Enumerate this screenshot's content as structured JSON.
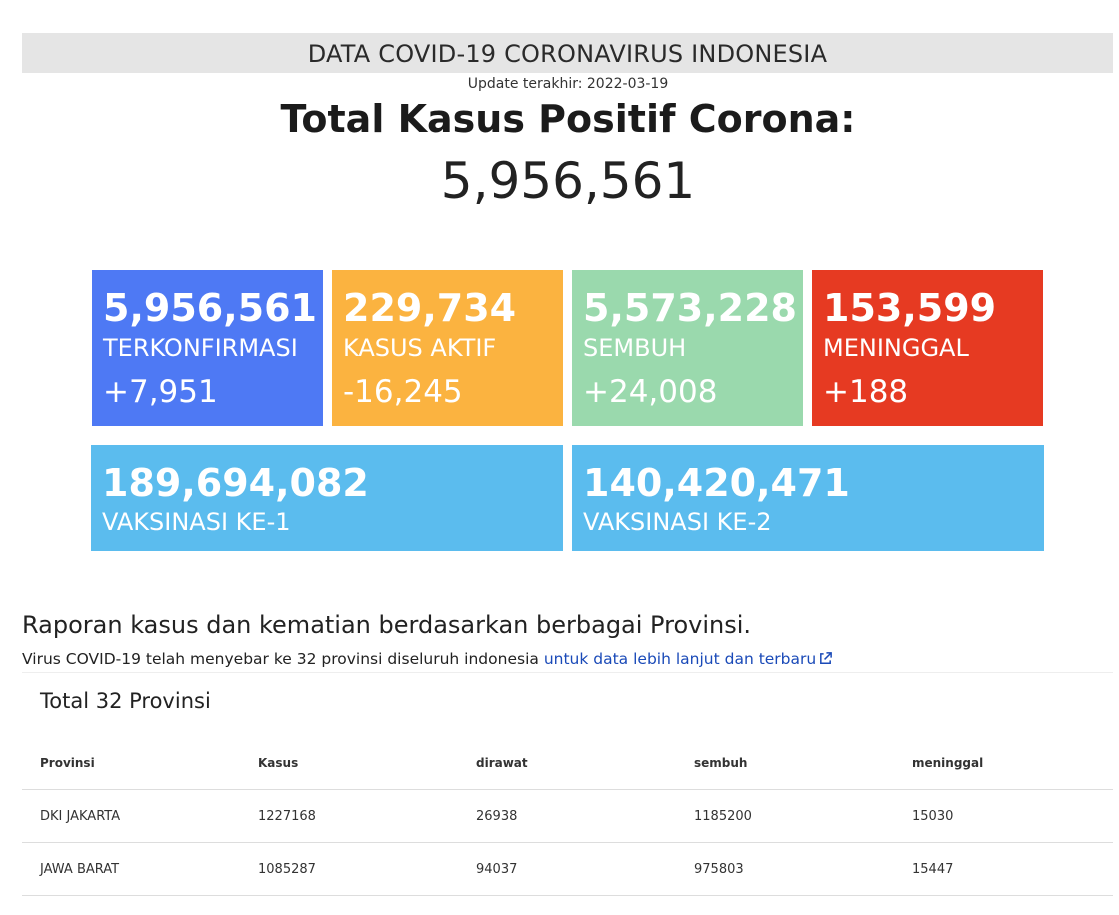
{
  "header": {
    "title": "DATA COVID-19 CORONAVIRUS INDONESIA",
    "update": "Update terakhir: 2022-03-19"
  },
  "summary": {
    "title": "Total Kasus Positif Corona:",
    "value": "5,956,561"
  },
  "cards": {
    "confirmed": {
      "value": "5,956,561",
      "label": "TERKONFIRMASI",
      "delta": "+7,951",
      "color": "#4e79f4"
    },
    "active": {
      "value": "229,734",
      "label": "KASUS AKTIF",
      "delta": "-16,245",
      "color": "#fbb340"
    },
    "recovered": {
      "value": "5,573,228",
      "label": "SEMBUH",
      "delta": "+24,008",
      "color": "#9ad9ad"
    },
    "death": {
      "value": "153,599",
      "label": "MENINGGAL",
      "delta": "+188",
      "color": "#e63a22"
    },
    "vax1": {
      "value": "189,694,082",
      "label": "VAKSINASI KE-1",
      "color": "#5bbcee"
    },
    "vax2": {
      "value": "140,420,471",
      "label": "VAKSINASI KE-2",
      "color": "#5bbcee"
    }
  },
  "report": {
    "title": "Raporan kasus dan kematian berdasarkan berbagai Provinsi.",
    "subtitle": "Virus COVID-19 telah menyebar ke 32 provinsi diseluruh indonesia",
    "link_text": "untuk data lebih lanjut dan terbaru",
    "link_icon": "external-link-icon"
  },
  "table": {
    "caption": "Total 32 Provinsi",
    "columns": [
      "Provinsi",
      "Kasus",
      "dirawat",
      "sembuh",
      "meninggal"
    ],
    "rows": [
      [
        "DKI JAKARTA",
        "1227168",
        "26938",
        "1185200",
        "15030"
      ],
      [
        "JAWA BARAT",
        "1085287",
        "94037",
        "975803",
        "15447"
      ]
    ]
  }
}
